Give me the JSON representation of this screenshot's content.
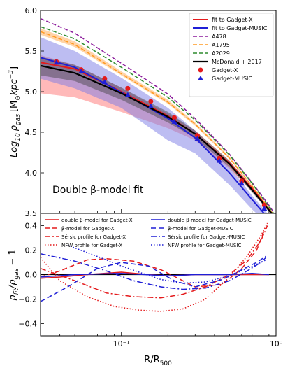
{
  "chart_data": [
    {
      "type": "line",
      "xscale": "log",
      "xlim": [
        0.03,
        1.0
      ],
      "ylim": [
        3.5,
        6.0
      ],
      "xticks": [
        {
          "v": 0.1,
          "label": "10⁻¹"
        },
        {
          "v": 1.0,
          "label": "10⁰"
        }
      ],
      "yticks": [
        3.5,
        4.0,
        4.5,
        5.0,
        5.5,
        6.0
      ],
      "ytick_labels": [
        "3.5",
        "4.0",
        "4.5",
        "5.0",
        "5.5",
        "6.0"
      ],
      "ylabel_main": "Log",
      "ylabel_sub": "10",
      "ylabel_rho": "ρ",
      "ylabel_gas": "gas",
      "ylabel_units": "[M",
      "ylabel_sun": "⊙",
      "ylabel_kpc": "kpc",
      "ylabel_exp": "−3",
      "ylabel_close": "]",
      "annotation": "Double β-model fit",
      "legend_position": "top-right",
      "bands": [
        {
          "name": "Gadget-X band",
          "color": "#ff8080",
          "opacity": 0.55,
          "x": [
            0.03,
            0.05,
            0.1,
            0.2,
            0.3,
            0.5,
            0.7,
            0.9,
            1.0
          ],
          "upper": [
            5.45,
            5.33,
            5.05,
            4.73,
            4.52,
            4.15,
            3.83,
            3.57,
            3.46
          ],
          "lower": [
            4.98,
            4.93,
            4.75,
            4.55,
            4.4,
            4.05,
            3.77,
            3.52,
            3.42
          ]
        },
        {
          "name": "Gadget-MUSIC band",
          "color": "#7b7be6",
          "opacity": 0.5,
          "x": [
            0.03,
            0.05,
            0.1,
            0.2,
            0.3,
            0.5,
            0.7,
            0.9,
            1.0
          ],
          "upper": [
            5.67,
            5.5,
            5.17,
            4.8,
            4.52,
            4.07,
            3.72,
            3.48,
            3.4
          ],
          "lower": [
            5.16,
            5.04,
            4.8,
            4.4,
            4.24,
            3.85,
            3.55,
            3.36,
            3.3
          ]
        },
        {
          "name": "McDonald + 2017 band",
          "color": "#404040",
          "opacity": 0.45,
          "x": [
            0.03,
            0.05,
            0.1,
            0.2,
            0.3,
            0.5,
            0.7,
            0.9,
            1.0
          ],
          "upper": [
            5.43,
            5.33,
            5.05,
            4.75,
            4.52,
            4.15,
            3.82,
            3.56,
            3.46
          ],
          "lower": [
            5.2,
            5.13,
            4.9,
            4.62,
            4.43,
            4.07,
            3.76,
            3.52,
            3.42
          ]
        },
        {
          "name": "A1795 band",
          "color": "#ffb060",
          "opacity": 0.55,
          "x": [
            0.03,
            0.05,
            0.1,
            0.2,
            0.3,
            0.5,
            0.7,
            0.9,
            1.0
          ],
          "upper": [
            5.78,
            5.62,
            5.25,
            4.9,
            4.62,
            4.2,
            3.85,
            3.57,
            3.45
          ],
          "lower": [
            5.7,
            5.55,
            5.2,
            4.85,
            4.58,
            4.17,
            3.82,
            3.55,
            3.43
          ]
        }
      ],
      "series": [
        {
          "name": "fit to Gadget-X",
          "color": "#e41a1c",
          "dash": "solid",
          "width": 2,
          "x": [
            0.03,
            0.05,
            0.1,
            0.2,
            0.3,
            0.5,
            0.7,
            0.9,
            1.0
          ],
          "y": [
            5.36,
            5.28,
            5.0,
            4.7,
            4.48,
            4.12,
            3.81,
            3.55,
            3.44
          ]
        },
        {
          "name": "fit to Gadget-MUSIC",
          "color": "#1f1fd6",
          "dash": "solid",
          "width": 2,
          "x": [
            0.03,
            0.05,
            0.1,
            0.2,
            0.3,
            0.5,
            0.7,
            0.9,
            1.0
          ],
          "y": [
            5.42,
            5.3,
            4.99,
            4.67,
            4.43,
            4.0,
            3.67,
            3.43,
            3.34
          ]
        },
        {
          "name": "A478",
          "color": "#8b1a9b",
          "dash": "6,3",
          "width": 1.5,
          "x": [
            0.03,
            0.05,
            0.1,
            0.2,
            0.3,
            0.5,
            0.7,
            0.9,
            1.0
          ],
          "y": [
            5.9,
            5.72,
            5.35,
            4.97,
            4.67,
            4.23,
            3.88,
            3.6,
            3.47
          ]
        },
        {
          "name": "A1795",
          "color": "#ff9a20",
          "dash": "6,3",
          "width": 1.5,
          "x": [
            0.03,
            0.05,
            0.1,
            0.2,
            0.3,
            0.5,
            0.7,
            0.9,
            1.0
          ],
          "y": [
            5.74,
            5.58,
            5.22,
            4.87,
            4.6,
            4.18,
            3.84,
            3.56,
            3.44
          ]
        },
        {
          "name": "A2029",
          "color": "#2e8b2e",
          "dash": "6,3",
          "width": 1.5,
          "x": [
            0.03,
            0.05,
            0.1,
            0.2,
            0.3,
            0.5,
            0.7,
            0.9,
            1.0
          ],
          "y": [
            5.8,
            5.65,
            5.3,
            4.93,
            4.65,
            4.22,
            3.87,
            3.58,
            3.46
          ]
        },
        {
          "name": "McDonald + 2017",
          "color": "#000000",
          "dash": "solid",
          "width": 2.2,
          "x": [
            0.03,
            0.05,
            0.1,
            0.2,
            0.3,
            0.5,
            0.7,
            0.9,
            1.0
          ],
          "y": [
            5.32,
            5.23,
            4.98,
            4.69,
            4.48,
            4.11,
            3.79,
            3.54,
            3.44
          ]
        }
      ],
      "markers": [
        {
          "name": "Gadget-X",
          "color": "#e41a1c",
          "shape": "circle",
          "x": [
            0.038,
            0.055,
            0.078,
            0.11,
            0.155,
            0.22,
            0.31,
            0.43,
            0.6,
            0.84
          ],
          "y": [
            5.37,
            5.27,
            5.16,
            5.04,
            4.88,
            4.68,
            4.46,
            4.18,
            3.9,
            3.6
          ]
        },
        {
          "name": "Gadget-MUSIC",
          "color": "#1f1fd6",
          "shape": "triangle",
          "x": [
            0.038,
            0.055,
            0.078,
            0.11,
            0.155,
            0.22,
            0.31,
            0.43,
            0.6,
            0.84
          ],
          "y": [
            5.36,
            5.25,
            5.12,
            4.96,
            4.82,
            4.63,
            4.42,
            4.15,
            3.87,
            3.56
          ]
        }
      ]
    },
    {
      "type": "line",
      "xscale": "log",
      "xlim": [
        0.03,
        1.0
      ],
      "ylim": [
        -0.5,
        0.5
      ],
      "yticks": [
        -0.4,
        -0.2,
        0.0,
        0.2,
        0.4
      ],
      "ytick_labels": [
        "−0.4",
        "−0.2",
        "0.0",
        "0.2",
        "0.4"
      ],
      "xticks": [
        {
          "v": 0.1,
          "label": "10⁻¹"
        },
        {
          "v": 1.0,
          "label": "10⁰"
        }
      ],
      "xlabel": "R/R",
      "xlabel_sub": "500",
      "ylabel_rho": "ρ",
      "ylabel_fit": "fit",
      "ylabel_slash": "/ρ",
      "ylabel_gas": "gas",
      "ylabel_tail": " − 1",
      "zero_line": true,
      "legend_position": "top",
      "series": [
        {
          "name": "double β-model for Gadget-X",
          "color": "#e41a1c",
          "dash": "solid",
          "width": 1.6,
          "x": [
            0.03,
            0.04,
            0.06,
            0.1,
            0.15,
            0.2,
            0.3,
            0.5,
            0.7,
            0.9
          ],
          "y": [
            -0.03,
            -0.02,
            0.0,
            0.02,
            0.0,
            -0.01,
            0.0,
            0.0,
            0.0,
            0.0
          ]
        },
        {
          "name": "β-model for Gadget-X",
          "color": "#e41a1c",
          "dash": "7,4",
          "width": 1.5,
          "x": [
            0.03,
            0.04,
            0.06,
            0.08,
            0.12,
            0.18,
            0.3,
            0.45,
            0.6,
            0.75,
            0.85
          ],
          "y": [
            -0.02,
            0.03,
            0.12,
            0.13,
            0.11,
            0.04,
            -0.1,
            -0.08,
            0.05,
            0.2,
            0.38
          ]
        },
        {
          "name": "Sérsic profile for Gadget-X",
          "color": "#e41a1c",
          "dash": "8,3,2,3",
          "width": 1.5,
          "x": [
            0.03,
            0.05,
            0.08,
            0.12,
            0.18,
            0.25,
            0.35,
            0.5,
            0.65,
            0.8,
            0.88
          ],
          "y": [
            0.05,
            -0.05,
            -0.15,
            -0.18,
            -0.19,
            -0.16,
            -0.1,
            0.0,
            0.12,
            0.28,
            0.4
          ]
        },
        {
          "name": "NFW profile for Gadget-X",
          "color": "#e41a1c",
          "dash": "1.5,2.5",
          "width": 1.6,
          "x": [
            0.03,
            0.04,
            0.06,
            0.09,
            0.13,
            0.18,
            0.25,
            0.35,
            0.5,
            0.65,
            0.8,
            0.88
          ],
          "y": [
            0.14,
            -0.05,
            -0.18,
            -0.26,
            -0.29,
            -0.3,
            -0.28,
            -0.2,
            -0.02,
            0.15,
            0.32,
            0.42
          ]
        },
        {
          "name": "double β-model for Gadget-MUSIC",
          "color": "#1f1fd6",
          "dash": "solid",
          "width": 1.6,
          "x": [
            0.03,
            0.05,
            0.1,
            0.2,
            0.3,
            0.5,
            0.7,
            0.9
          ],
          "y": [
            -0.02,
            0.0,
            0.01,
            -0.01,
            0.0,
            0.0,
            0.01,
            0.0
          ]
        },
        {
          "name": "β-model for Gadget-MUSIC",
          "color": "#1f1fd6",
          "dash": "7,4",
          "width": 1.5,
          "x": [
            0.03,
            0.045,
            0.07,
            0.1,
            0.15,
            0.22,
            0.3,
            0.45,
            0.6,
            0.75,
            0.86
          ],
          "y": [
            -0.22,
            -0.1,
            0.05,
            0.1,
            0.07,
            -0.05,
            -0.1,
            -0.04,
            0.04,
            0.1,
            0.15
          ]
        },
        {
          "name": "Sérsic profile for Gadget-MUSIC",
          "color": "#1f1fd6",
          "dash": "8,3,2,3",
          "width": 1.5,
          "x": [
            0.03,
            0.05,
            0.08,
            0.12,
            0.18,
            0.25,
            0.35,
            0.5,
            0.65,
            0.8,
            0.86
          ],
          "y": [
            0.17,
            0.11,
            0.03,
            -0.05,
            -0.1,
            -0.12,
            -0.11,
            -0.05,
            0.03,
            0.1,
            0.14
          ]
        },
        {
          "name": "NFW profile for Gadget-MUSIC",
          "color": "#1f1fd6",
          "dash": "1.5,2.5",
          "width": 1.6,
          "x": [
            0.045,
            0.06,
            0.08,
            0.1,
            0.13,
            0.18,
            0.25,
            0.35,
            0.5,
            0.65,
            0.8,
            0.86
          ],
          "y": [
            0.24,
            0.18,
            0.12,
            0.07,
            0.02,
            -0.04,
            -0.07,
            -0.06,
            -0.01,
            0.05,
            0.1,
            0.12
          ]
        }
      ]
    }
  ]
}
